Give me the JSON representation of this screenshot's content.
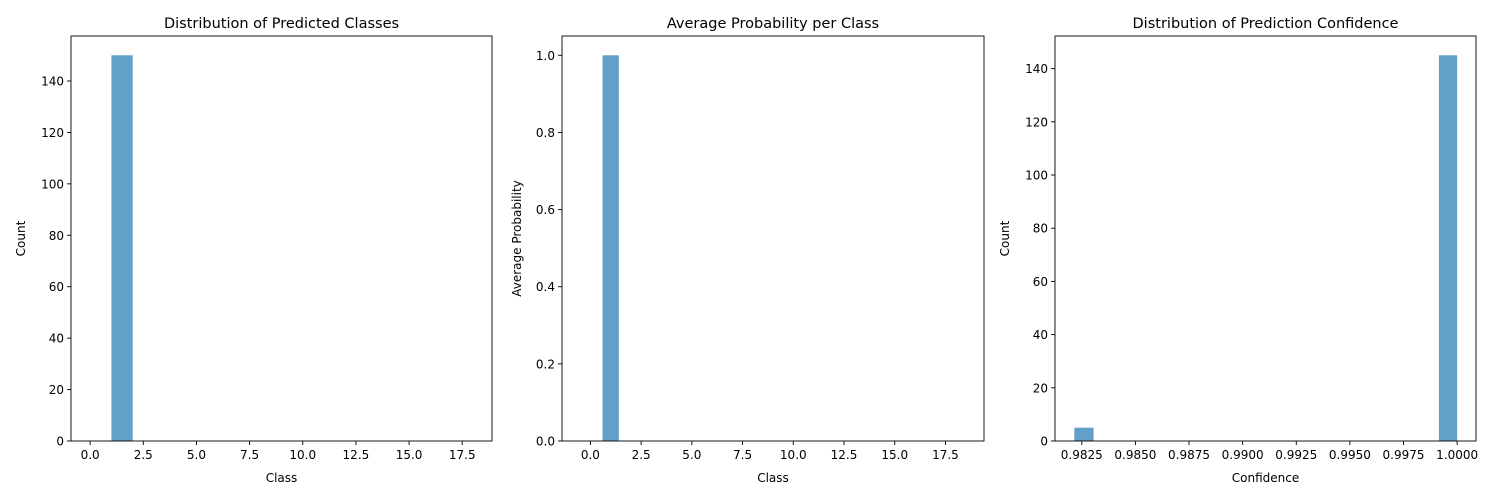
{
  "chart_data": [
    {
      "type": "bar",
      "title": "Distribution of Predicted Classes",
      "xlabel": "Class",
      "ylabel": "Count",
      "xlim": [
        -0.9,
        18.9
      ],
      "ylim": [
        0,
        157.5
      ],
      "x_ticks": [
        0,
        2.5,
        5,
        7.5,
        10,
        12.5,
        15,
        17.5
      ],
      "x_tick_labels": [
        "0.0",
        "2.5",
        "5.0",
        "7.5",
        "10.0",
        "12.5",
        "15.0",
        "17.5"
      ],
      "y_ticks": [
        0,
        20,
        40,
        60,
        80,
        100,
        120,
        140
      ],
      "y_tick_labels": [
        "0",
        "20",
        "40",
        "60",
        "80",
        "100",
        "120",
        "140"
      ],
      "bars": [
        {
          "x0": 1.0,
          "x1": 2.0,
          "value": 150
        }
      ],
      "color": "#1f77b4",
      "alpha": 0.7,
      "grid": false
    },
    {
      "type": "bar",
      "title": "Average Probability per Class",
      "xlabel": "Class",
      "ylabel": "Average Probability",
      "xlim": [
        -1.4,
        19.4
      ],
      "ylim": [
        0,
        1.05
      ],
      "x_ticks": [
        0,
        2.5,
        5,
        7.5,
        10,
        12.5,
        15,
        17.5
      ],
      "x_tick_labels": [
        "0.0",
        "2.5",
        "5.0",
        "7.5",
        "10.0",
        "12.5",
        "15.0",
        "17.5"
      ],
      "y_ticks": [
        0,
        0.2,
        0.4,
        0.6,
        0.8,
        1.0
      ],
      "y_tick_labels": [
        "0.0",
        "0.2",
        "0.4",
        "0.6",
        "0.8",
        "1.0"
      ],
      "bars": [
        {
          "x0": 0.6,
          "x1": 1.4,
          "value": 1.0
        }
      ],
      "color": "#1f77b4",
      "alpha": 0.7,
      "grid": false
    },
    {
      "type": "bar",
      "title": "Distribution of Prediction Confidence",
      "xlabel": "Confidence",
      "ylabel": "Count",
      "xlim": [
        0.98125,
        1.00088
      ],
      "ylim": [
        0,
        152.25
      ],
      "x_ticks": [
        0.9825,
        0.985,
        0.9875,
        0.99,
        0.9925,
        0.995,
        0.9975,
        1.0
      ],
      "x_tick_labels": [
        "0.9825",
        "0.9850",
        "0.9875",
        "0.9900",
        "0.9925",
        "0.9950",
        "0.9975",
        "1.0000"
      ],
      "y_ticks": [
        0,
        20,
        40,
        60,
        80,
        100,
        120,
        140
      ],
      "y_tick_labels": [
        "0",
        "20",
        "40",
        "60",
        "80",
        "100",
        "120",
        "140"
      ],
      "bars": [
        {
          "x0": 0.98215,
          "x1": 0.98305,
          "value": 5
        },
        {
          "x0": 0.99915,
          "x1": 1.0,
          "value": 145
        }
      ],
      "color": "#1f77b4",
      "alpha": 0.7,
      "grid": false
    }
  ]
}
